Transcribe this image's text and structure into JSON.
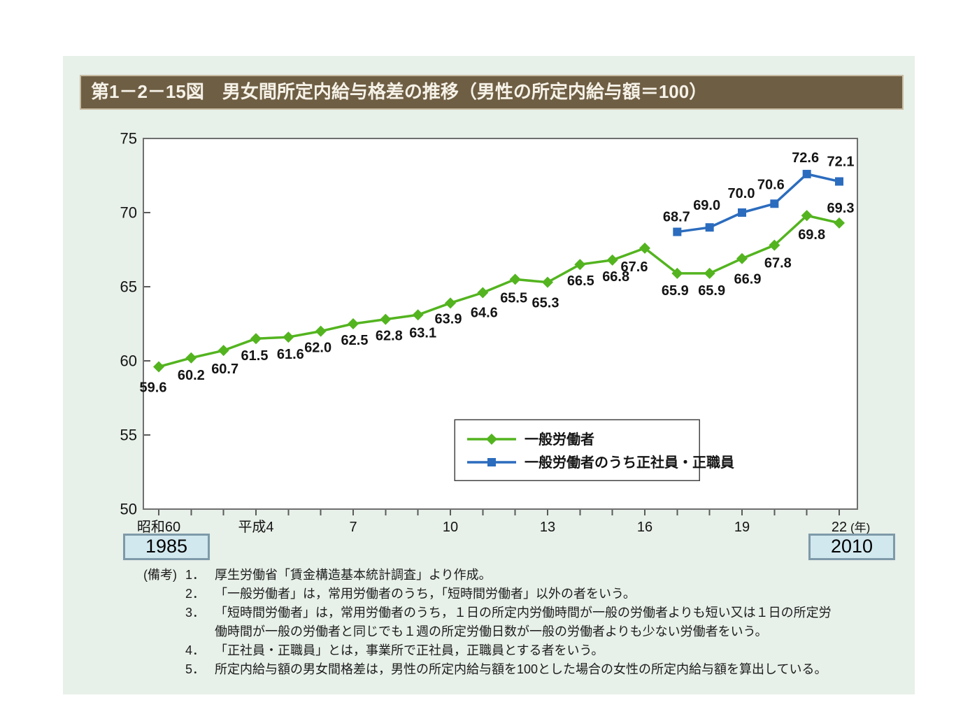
{
  "figure": {
    "number": "第1－2－15図",
    "title": "男女間所定内給与格差の推移（男性の所定内給与額＝100）"
  },
  "chart_data": {
    "type": "line",
    "title": "男女間所定内給与格差の推移（男性の所定内給与額＝100）",
    "xlabel": "",
    "ylabel": "",
    "ylim": [
      50,
      75
    ],
    "y_ticks": [
      50,
      55,
      60,
      65,
      70,
      75
    ],
    "grid": false,
    "num_categories": 22,
    "x_unit": "(年)",
    "x_tick_labels": [
      {
        "index": 0,
        "label": "昭和60"
      },
      {
        "index": 3,
        "label": "平成4"
      },
      {
        "index": 6,
        "label": "7"
      },
      {
        "index": 9,
        "label": "10"
      },
      {
        "index": 12,
        "label": "13"
      },
      {
        "index": 15,
        "label": "16"
      },
      {
        "index": 18,
        "label": "19"
      },
      {
        "index": 21,
        "label": "22"
      }
    ],
    "legend_position": "inside-bottom-center",
    "series": [
      {
        "name": "一般労働者",
        "marker": "diamond",
        "color": "#53b41f",
        "start_index": 0,
        "values": [
          59.6,
          60.2,
          60.7,
          61.5,
          61.6,
          62.0,
          62.5,
          62.8,
          63.1,
          63.9,
          64.6,
          65.5,
          65.3,
          66.5,
          66.8,
          67.6,
          65.9,
          65.9,
          66.9,
          67.8,
          69.8,
          69.3
        ]
      },
      {
        "name": "一般労働者のうち正社員・正職員",
        "marker": "square",
        "color": "#2b6cbe",
        "start_index": 16,
        "values": [
          68.7,
          69.0,
          70.0,
          70.6,
          72.6,
          72.1
        ]
      }
    ],
    "annotations": [
      {
        "label": "1985",
        "anchor": "昭和60"
      },
      {
        "label": "2010",
        "anchor": "22"
      }
    ]
  },
  "notes": {
    "label": "(備考)",
    "items": [
      {
        "n": "1．",
        "t": "厚生労働省「賃金構造基本統計調査」より作成。"
      },
      {
        "n": "2．",
        "t": "「一般労働者」は，常用労働者のうち，「短時間労働者」以外の者をいう。"
      },
      {
        "n": "3．",
        "t": "「短時間労働者」は，常用労働者のうち，１日の所定内労働時間が一般の労働者よりも短い又は１日の所定労働時間が一般の労働者と同じでも１週の所定労働日数が一般の労働者よりも少ない労働者をいう。"
      },
      {
        "n": "4．",
        "t": "「正社員・正職員」とは，事業所で正社員，正職員とする者をいう。"
      },
      {
        "n": "5．",
        "t": "所定内給与額の男女間格差は，男性の所定内給与額を100とした場合の女性の所定内給与額を算出している。"
      }
    ]
  },
  "colors": {
    "panel_bg": "#e7f0e9",
    "title_bar_bg": "#6e5e44",
    "title_bar_border": "#c8bca3",
    "title_text": "#f6f2e8",
    "plot_frame": "#6f6f6f",
    "series_general_workers": "#53b41f",
    "series_regular_staff": "#2b6cbe",
    "highlight_box_bg": "#d2e8ef",
    "highlight_box_border": "#7e9aa9"
  }
}
